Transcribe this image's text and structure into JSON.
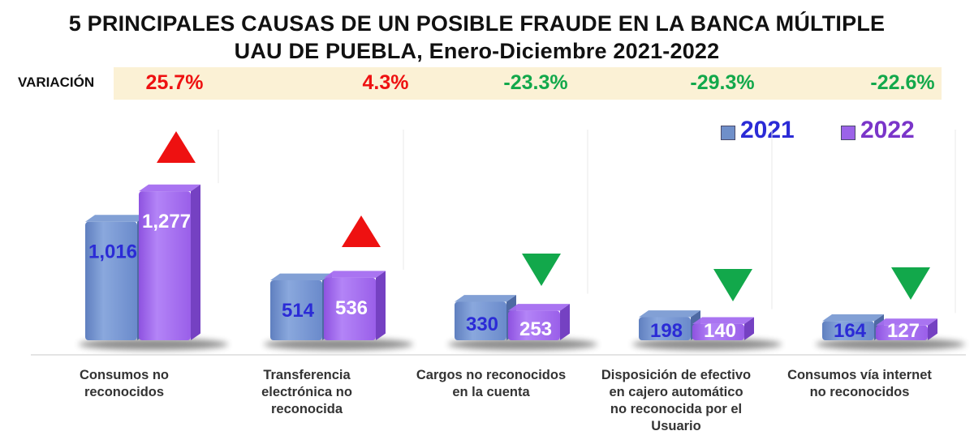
{
  "title": {
    "line1": "5 PRINCIPALES CAUSAS DE UN POSIBLE FRAUDE EN LA BANCA MÚLTIPLE",
    "line2": "UAU DE PUEBLA, Enero-Diciembre 2021-2022"
  },
  "variation": {
    "label": "VARIACIÓN",
    "values": [
      "25.7%",
      "4.3%",
      "-23.3%",
      "-29.3%",
      "-22.6%"
    ],
    "directions": [
      "up",
      "up",
      "down",
      "down",
      "down"
    ]
  },
  "legend": [
    {
      "label": "2021",
      "color": "#6f8fc9",
      "text_color": "#2b2bd6"
    },
    {
      "label": "2022",
      "color": "#9b63e8",
      "text_color": "#7a35c9"
    }
  ],
  "colors": {
    "up": "#ee1111",
    "down": "#12a84b",
    "bar_2021": "#7b9bd3",
    "bar_2022": "#a46df0",
    "label_2021": "#2b2bd6",
    "label_2022": "#ffffff"
  },
  "chart_data": {
    "type": "bar",
    "title": "5 PRINCIPALES CAUSAS DE UN POSIBLE FRAUDE EN LA BANCA MÚLTIPLE UAU DE PUEBLA, Enero-Diciembre 2021-2022",
    "categories": [
      "Consumos no reconocidos",
      "Transferencia electrónica no reconocida",
      "Cargos no reconocidos en la cuenta",
      "Disposición de efectivo en cajero automático no reconocida por el Usuario",
      "Consumos vía internet no reconocidos"
    ],
    "series": [
      {
        "name": "2021",
        "values": [
          1016,
          514,
          330,
          198,
          164
        ],
        "labels": [
          "1,016",
          "514",
          "330",
          "198",
          "164"
        ]
      },
      {
        "name": "2022",
        "values": [
          1277,
          536,
          253,
          140,
          127
        ],
        "labels": [
          "1,277",
          "536",
          "253",
          "140",
          "127"
        ]
      }
    ],
    "ylim": [
      0,
      1400
    ],
    "legend_position": "top-right",
    "grid": false
  },
  "category_labels": [
    "Consumos no\nreconocidos",
    "Transferencia\nelectrónica no\nreconocida",
    "Cargos no reconocidos\nen la cuenta",
    "Disposición de efectivo\nen cajero automático\nno reconocida por el\nUsuario",
    "Consumos vía internet\nno reconocidos"
  ]
}
